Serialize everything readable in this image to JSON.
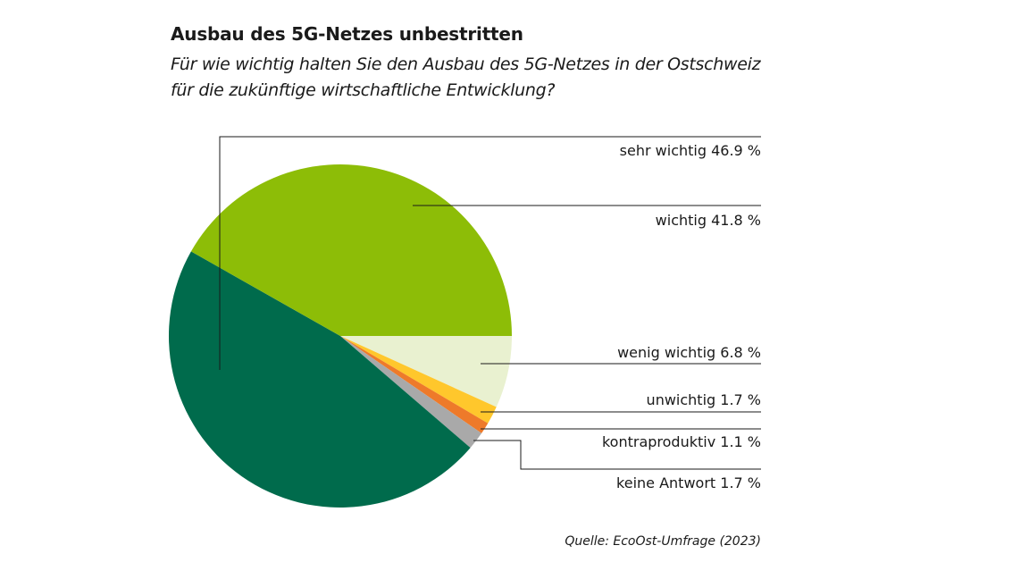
{
  "title": "Ausbau des 5G-Netzes unbestritten",
  "subtitle_lines": [
    "Für wie wichtig halten Sie den Ausbau des 5G-Netzes in der Ostschweiz",
    "für die zukünftige wirtschaftliche Entwicklung?"
  ],
  "source": "Quelle: EcoOst-Umfrage (2023)",
  "chart_data": {
    "type": "pie",
    "unit": "%",
    "slices": [
      {
        "label": "sehr wichtig 46.9 %",
        "name": "sehr wichtig",
        "value": 46.9,
        "color": "#006b4c"
      },
      {
        "label": "wichtig 41.8 %",
        "name": "wichtig",
        "value": 41.8,
        "color": "#8dbd07"
      },
      {
        "label": "wenig wichtig 6.8 %",
        "name": "wenig wichtig",
        "value": 6.8,
        "color": "#e9f1d0"
      },
      {
        "label": "unwichtig 1.7 %",
        "name": "unwichtig",
        "value": 1.7,
        "color": "#ffc72c"
      },
      {
        "label": "kontraproduktiv 1.1 %",
        "name": "kontraproduktiv",
        "value": 1.1,
        "color": "#ee7a2a"
      },
      {
        "label": "keine Antwort 1.7 %",
        "name": "keine Antwort",
        "value": 1.7,
        "color": "#a9a9a9"
      }
    ]
  }
}
